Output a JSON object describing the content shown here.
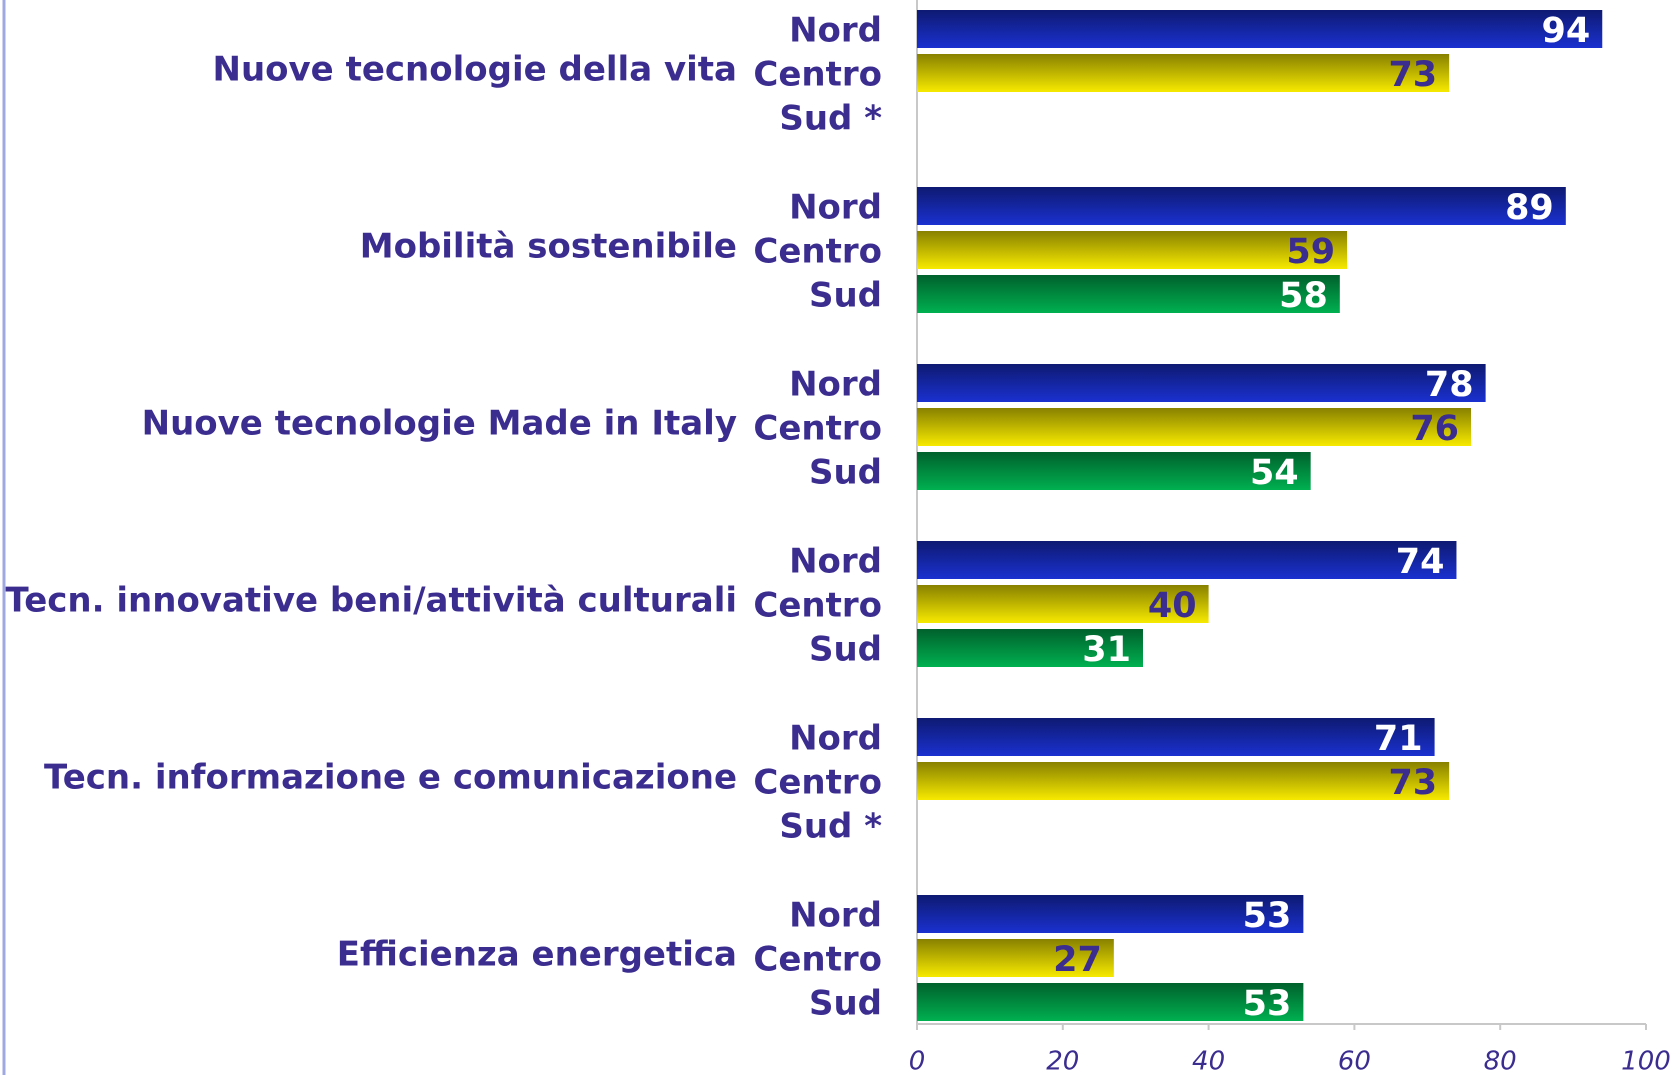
{
  "chart_data": {
    "type": "bar",
    "orientation": "horizontal",
    "categories": [
      "Nuove tecnologie della vita",
      "Mobilità sostenibile",
      "Nuove tecnologie Made in Italy",
      "Tecn. innovative beni/attività culturali",
      "Tecn. informazione e comunicazione",
      "Efficienza energetica"
    ],
    "row_labels": [
      [
        "Nord",
        "Centro",
        "Sud *"
      ],
      [
        "Nord",
        "Centro",
        "Sud"
      ],
      [
        "Nord",
        "Centro",
        "Sud"
      ],
      [
        "Nord",
        "Centro",
        "Sud"
      ],
      [
        "Nord",
        "Centro",
        "Sud *"
      ],
      [
        "Nord",
        "Centro",
        "Sud"
      ]
    ],
    "series": [
      {
        "color": "#1a30d0",
        "label_color": "#ffffff",
        "values": [
          94,
          89,
          78,
          74,
          71,
          53
        ]
      },
      {
        "color": "#f7ea00",
        "label_color": "#3b2d8f",
        "values": [
          73,
          59,
          76,
          40,
          73,
          27
        ]
      },
      {
        "color": "#00b050",
        "label_color": "#ffffff",
        "values": [
          null,
          58,
          54,
          31,
          null,
          53
        ]
      }
    ],
    "xlim": [
      0,
      100
    ],
    "xticks": [
      0,
      20,
      40,
      60,
      80,
      100
    ]
  }
}
